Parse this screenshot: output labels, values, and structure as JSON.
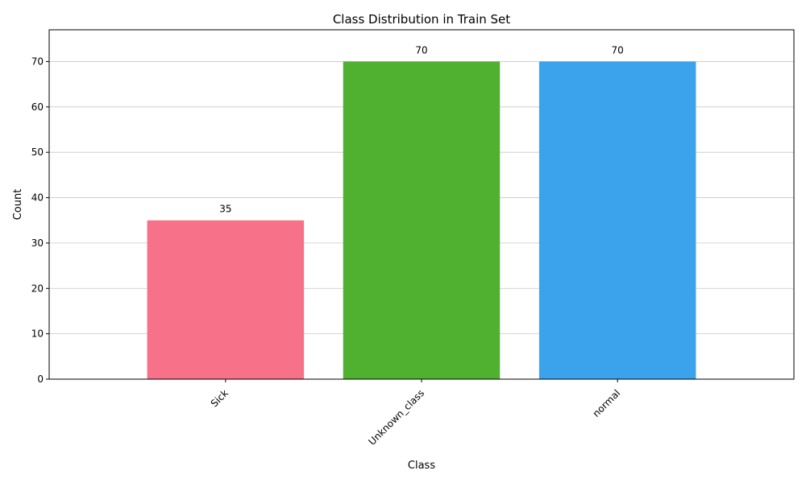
{
  "chart_data": {
    "type": "bar",
    "title": "Class Distribution in Train Set",
    "xlabel": "Class",
    "ylabel": "Count",
    "categories": [
      "Sick",
      "Unknown_class",
      "normal"
    ],
    "values": [
      35,
      70,
      70
    ],
    "colors": [
      "#f77189",
      "#50b131",
      "#3ba3ec"
    ],
    "data_labels": [
      "35",
      "70",
      "70"
    ],
    "ylim": [
      0,
      77
    ],
    "yticks": [
      0,
      10,
      20,
      30,
      40,
      50,
      60,
      70
    ],
    "ytick_labels": [
      "0",
      "10",
      "20",
      "30",
      "40",
      "50",
      "60",
      "70"
    ],
    "grid": "y-major",
    "xtick_rotation_deg": 45
  }
}
